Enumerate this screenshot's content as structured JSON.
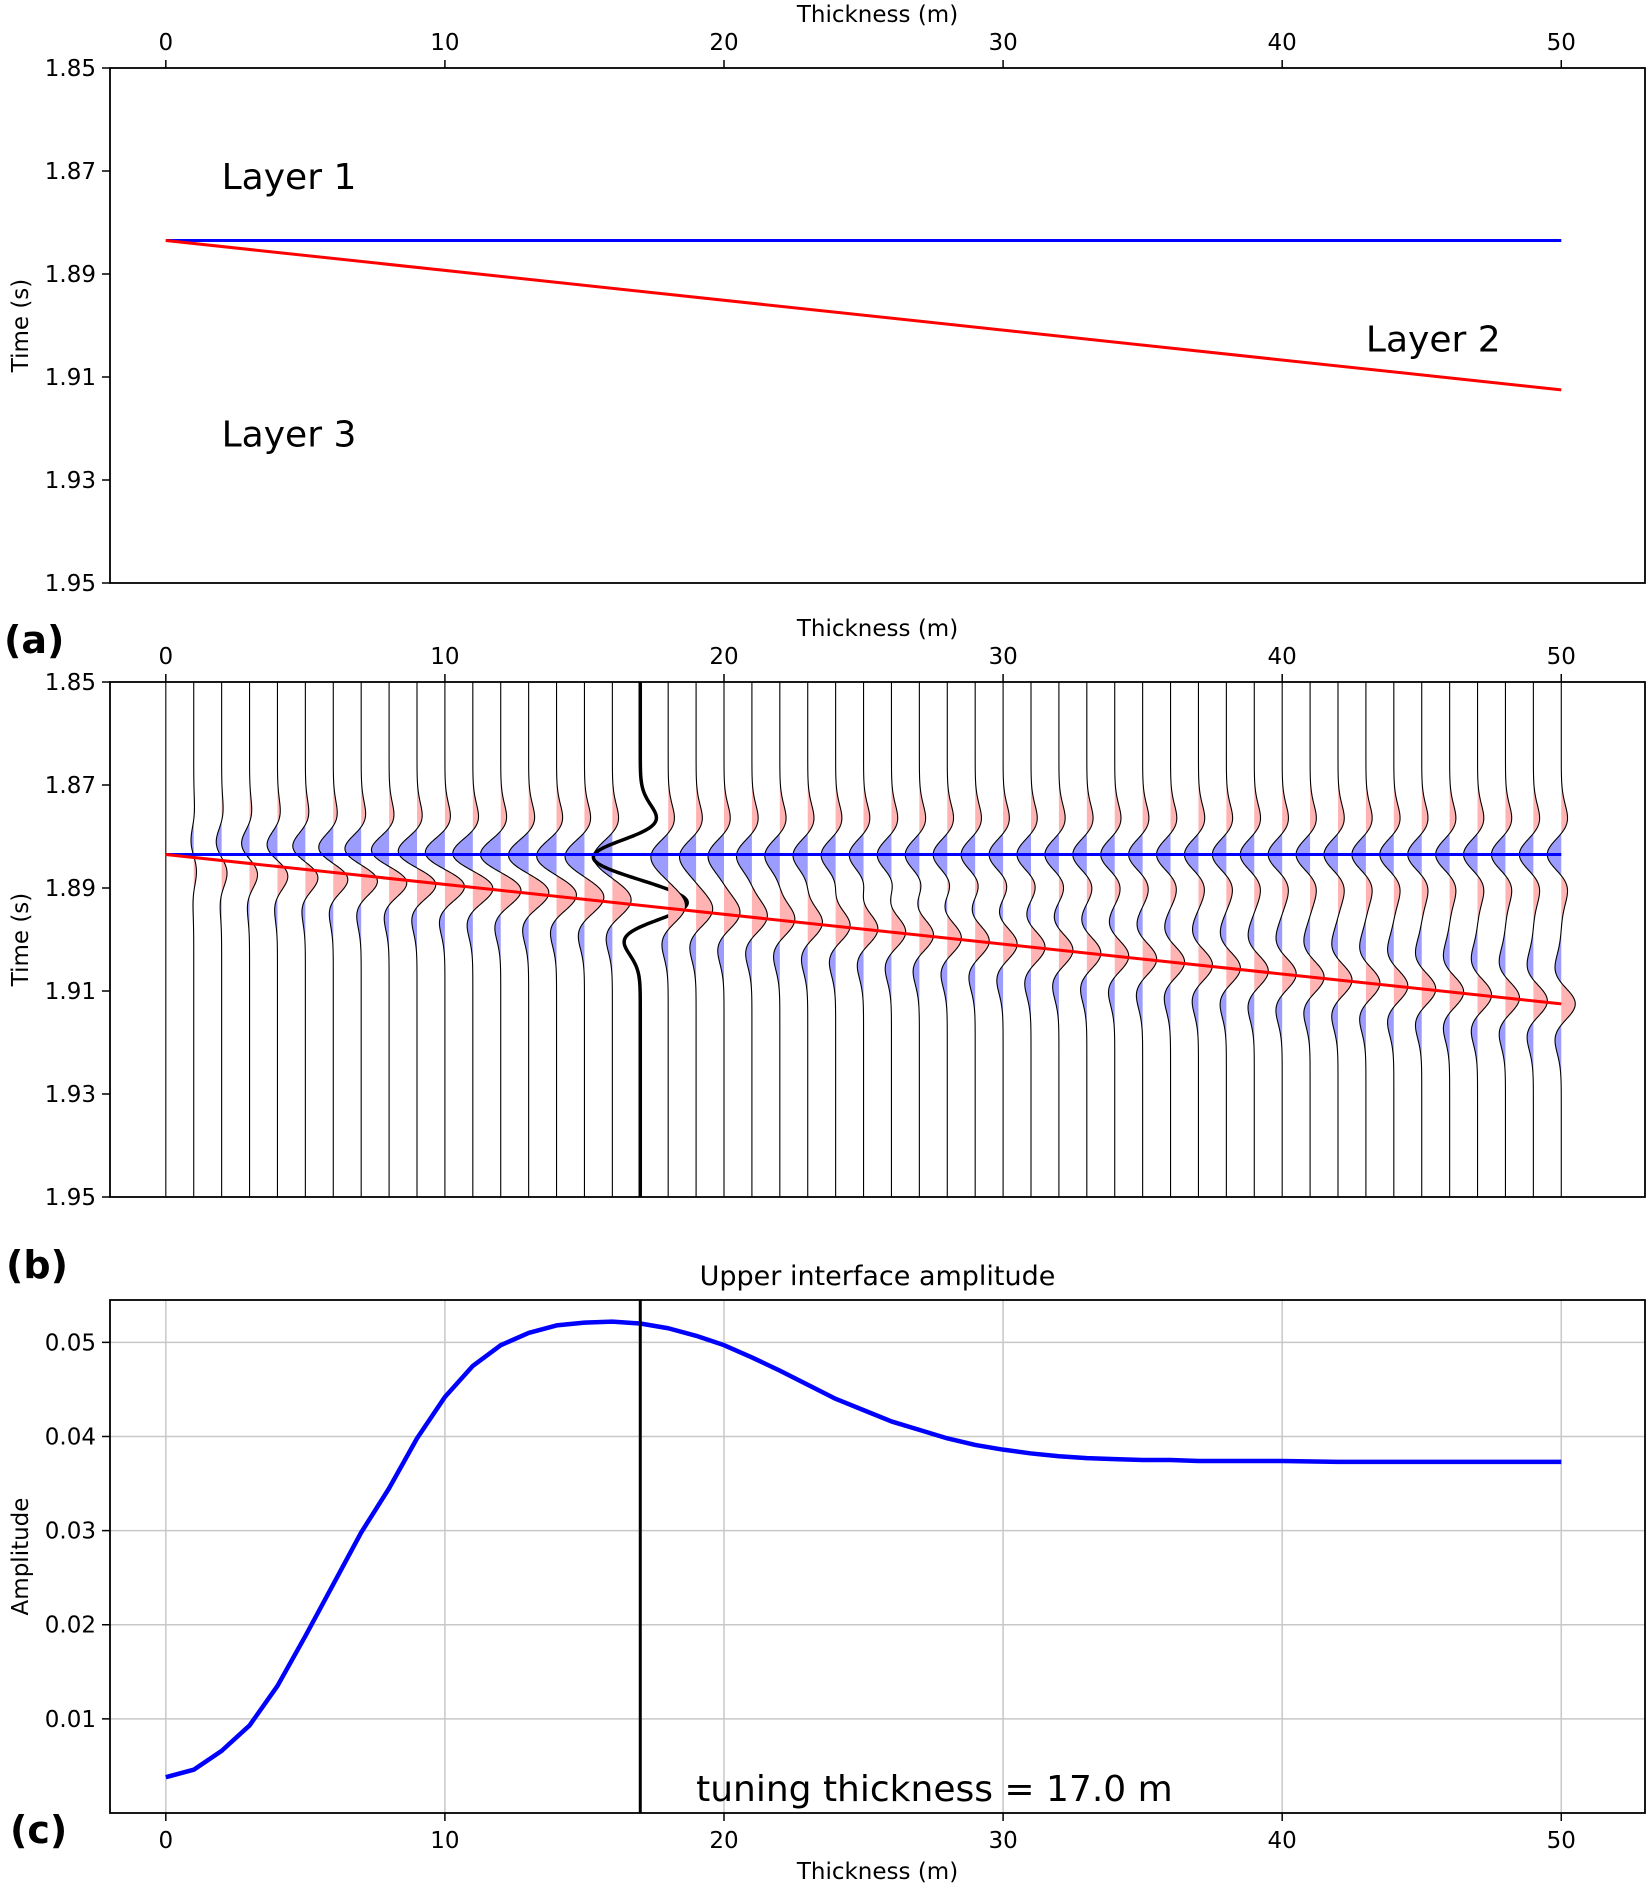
{
  "panel_labels": [
    "(a)",
    "(b)",
    "(c)"
  ],
  "colors": {
    "upper_interface": "#0000ff",
    "lower_interface": "#ff0000",
    "positive_fill": "#ffb3b3",
    "negative_fill": "#9c9cff",
    "tuning_line": "#000000",
    "amplitude_curve": "#0000ff",
    "grid": "#c8c8c8"
  },
  "chart_data": [
    {
      "id": "a",
      "type": "line",
      "title": "",
      "xlabel": "Thickness (m)",
      "xlabel_position": "top",
      "ylabel": "Time (s)",
      "xlim": [
        -2,
        53
      ],
      "ylim": [
        1.95,
        1.85
      ],
      "xticks": [
        0,
        10,
        20,
        30,
        40,
        50
      ],
      "yticks": [
        1.85,
        1.87,
        1.89,
        1.91,
        1.93,
        1.95
      ],
      "grid": false,
      "series": [
        {
          "x": [
            0,
            50
          ],
          "y": [
            1.8835,
            1.8835
          ],
          "color": "#0000ff"
        },
        {
          "x": [
            0,
            50
          ],
          "y": [
            1.8835,
            1.9125
          ],
          "color": "#ff0000"
        }
      ],
      "annotations": [
        {
          "text": "Layer 1",
          "x": 2,
          "y": 1.8735
        },
        {
          "text": "Layer 2",
          "x": 43,
          "y": 1.905
        },
        {
          "text": "Layer 3",
          "x": 2,
          "y": 1.9235
        }
      ]
    },
    {
      "id": "b",
      "type": "line",
      "title": "",
      "xlabel": "Thickness (m)",
      "xlabel_position": "top",
      "ylabel": "Time (s)",
      "xlim": [
        -2,
        53
      ],
      "ylim": [
        1.95,
        1.85
      ],
      "xticks": [
        0,
        10,
        20,
        30,
        40,
        50
      ],
      "yticks": [
        1.85,
        1.87,
        1.89,
        1.91,
        1.93,
        1.95
      ],
      "grid": false,
      "traces": {
        "thickness_start": 0,
        "thickness_end": 50,
        "thickness_step": 1,
        "highlighted_thickness": 17
      },
      "series": [
        {
          "x": [
            0,
            50
          ],
          "y": [
            1.8835,
            1.8835
          ],
          "color": "#0000ff"
        },
        {
          "x": [
            0,
            50
          ],
          "y": [
            1.8835,
            1.9125
          ],
          "color": "#ff0000"
        }
      ]
    },
    {
      "id": "c",
      "type": "line",
      "title": "Upper interface amplitude",
      "xlabel": "Thickness (m)",
      "ylabel": "Amplitude",
      "xlim": [
        -2,
        53
      ],
      "ylim": [
        0,
        0.0545
      ],
      "xticks": [
        0,
        10,
        20,
        30,
        40,
        50
      ],
      "yticks": [
        0.01,
        0.02,
        0.03,
        0.04,
        0.05
      ],
      "grid": true,
      "series": [
        {
          "color": "#0000ff",
          "x": [
            0,
            1,
            2,
            3,
            4,
            5,
            6,
            7,
            8,
            9,
            10,
            11,
            12,
            13,
            14,
            15,
            16,
            17,
            18,
            19,
            20,
            21,
            22,
            23,
            24,
            25,
            26,
            27,
            28,
            29,
            30,
            31,
            32,
            33,
            34,
            35,
            36,
            37,
            38,
            39,
            40,
            42,
            44,
            46,
            48,
            50
          ],
          "y": [
            0.0038,
            0.0046,
            0.0066,
            0.0093,
            0.0135,
            0.0188,
            0.0243,
            0.0298,
            0.0345,
            0.0398,
            0.0442,
            0.0475,
            0.0497,
            0.051,
            0.0518,
            0.0521,
            0.0522,
            0.052,
            0.0515,
            0.0507,
            0.0497,
            0.0484,
            0.047,
            0.0455,
            0.044,
            0.0428,
            0.0416,
            0.0407,
            0.0398,
            0.0391,
            0.0386,
            0.0382,
            0.0379,
            0.0377,
            0.0376,
            0.0375,
            0.0375,
            0.0374,
            0.0374,
            0.0374,
            0.0374,
            0.0373,
            0.0373,
            0.0373,
            0.0373,
            0.0373
          ]
        }
      ],
      "vertical_line": {
        "x": 17,
        "color": "#000000"
      },
      "annotation": {
        "text": "tuning thickness = 17.0 m",
        "x": 19.0,
        "y": 0.0013
      }
    }
  ]
}
